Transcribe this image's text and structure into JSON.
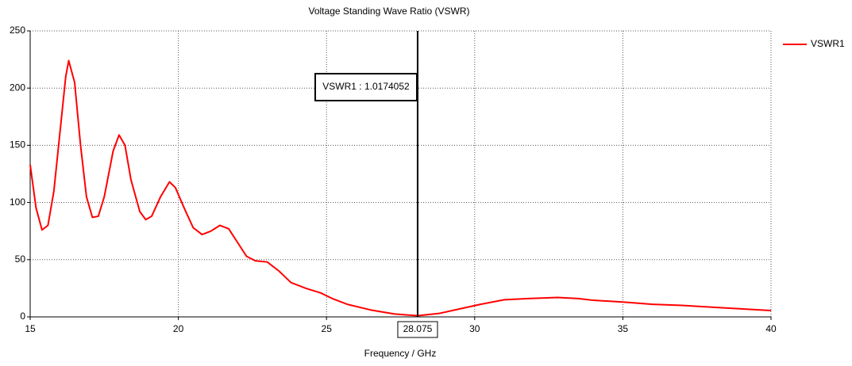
{
  "chart_data": {
    "type": "line",
    "title": "Voltage Standing Wave Ratio (VSWR)",
    "xlabel": "Frequency / GHz",
    "x": [
      15,
      15.2,
      15.4,
      15.6,
      15.8,
      16.0,
      16.2,
      16.3,
      16.5,
      16.7,
      16.9,
      17.1,
      17.3,
      17.5,
      17.8,
      18.0,
      18.2,
      18.4,
      18.7,
      18.9,
      19.1,
      19.4,
      19.7,
      19.9,
      20.2,
      20.5,
      20.8,
      21.1,
      21.4,
      21.7,
      22.0,
      22.3,
      22.6,
      23.0,
      23.4,
      23.8,
      24.3,
      24.8,
      25.2,
      25.7,
      26.5,
      27.3,
      28.075,
      28.8,
      29.5,
      30.2,
      31.0,
      31.8,
      32.8,
      33.5,
      34.0,
      35.0,
      36.0,
      37.0,
      38.0,
      39.0,
      40.0
    ],
    "series": [
      {
        "name": "VSWR1",
        "color": "#ff0000",
        "values": [
          133,
          95,
          76,
          80,
          110,
          160,
          210,
          224,
          205,
          150,
          105,
          87,
          88,
          105,
          145,
          159,
          150,
          120,
          92,
          85,
          88,
          105,
          118,
          113,
          95,
          78,
          72,
          75,
          80,
          77,
          65,
          53,
          49,
          48,
          40,
          30,
          25,
          21,
          16,
          11,
          6,
          2.5,
          1.017,
          3,
          7,
          11,
          15,
          16,
          17,
          16,
          14.5,
          13,
          11,
          10,
          8.5,
          7,
          5.5
        ]
      }
    ],
    "xlim": [
      15,
      40
    ],
    "xticks": [
      15,
      20,
      25,
      30,
      35,
      40
    ],
    "ylim": [
      0,
      250
    ],
    "yticks": [
      0,
      50,
      100,
      150,
      200,
      250
    ],
    "grid": true,
    "legend": "right",
    "marker_x": 28.075,
    "marker_annotation": "VSWR1 : 1.0174052"
  }
}
